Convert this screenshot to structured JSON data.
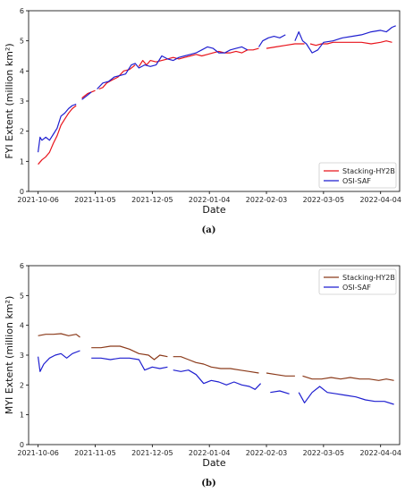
{
  "chart_data": [
    {
      "type": "line",
      "panel_label": "(a)",
      "xlabel": "Date",
      "ylabel": "FYI Extent (million km²)",
      "x_ticks": [
        "2021-10-06",
        "2021-11-05",
        "2021-12-05",
        "2022-01-04",
        "2022-02-03",
        "2022-03-05",
        "2022-04-04"
      ],
      "xlim": [
        "2021-10-01",
        "2022-04-14"
      ],
      "ylim": [
        0,
        6
      ],
      "y_ticks": [
        0,
        1,
        2,
        3,
        4,
        5,
        6
      ],
      "legend_position": "lower-right",
      "series": [
        {
          "name": "Stacking-HY2B",
          "color": "#e8141c",
          "points": [
            [
              "2021-10-06",
              0.9
            ],
            [
              "2021-10-08",
              1.05
            ],
            [
              "2021-10-10",
              1.15
            ],
            [
              "2021-10-12",
              1.3
            ],
            [
              "2021-10-14",
              1.6
            ],
            [
              "2021-10-16",
              1.85
            ],
            [
              "2021-10-18",
              2.2
            ],
            [
              "2021-10-20",
              2.4
            ],
            [
              "2021-10-22",
              2.6
            ],
            [
              "2021-10-24",
              2.75
            ],
            [
              "2021-10-26",
              2.85
            ],
            null,
            [
              "2021-10-29",
              3.1
            ],
            [
              "2021-11-01",
              3.25
            ],
            [
              "2021-11-03",
              3.3
            ],
            [
              "2021-11-05",
              3.35
            ],
            null,
            [
              "2021-11-07",
              3.4
            ],
            [
              "2021-11-09",
              3.45
            ],
            [
              "2021-11-11",
              3.6
            ],
            [
              "2021-11-14",
              3.7
            ],
            [
              "2021-11-17",
              3.8
            ],
            [
              "2021-11-20",
              4.0
            ],
            [
              "2021-11-23",
              4.05
            ],
            [
              "2021-11-26",
              4.2
            ],
            null,
            [
              "2021-11-28",
              4.15
            ],
            [
              "2021-11-30",
              4.35
            ],
            [
              "2021-12-02",
              4.2
            ],
            [
              "2021-12-04",
              4.35
            ],
            [
              "2021-12-07",
              4.3
            ],
            [
              "2021-12-10",
              4.35
            ],
            [
              "2021-12-13",
              4.4
            ],
            [
              "2021-12-16",
              4.45
            ],
            [
              "2021-12-19",
              4.4
            ],
            [
              "2021-12-22",
              4.45
            ],
            [
              "2021-12-25",
              4.5
            ],
            [
              "2021-12-28",
              4.55
            ],
            [
              "2021-12-31",
              4.5
            ],
            [
              "2022-01-03",
              4.55
            ],
            [
              "2022-01-06",
              4.6
            ],
            [
              "2022-01-09",
              4.65
            ],
            [
              "2022-01-12",
              4.6
            ],
            [
              "2022-01-15",
              4.6
            ],
            [
              "2022-01-18",
              4.65
            ],
            [
              "2022-01-21",
              4.6
            ],
            [
              "2022-01-24",
              4.7
            ],
            [
              "2022-01-27",
              4.7
            ],
            [
              "2022-01-30",
              4.75
            ],
            null,
            [
              "2022-02-03",
              4.75
            ],
            [
              "2022-02-08",
              4.8
            ],
            [
              "2022-02-13",
              4.85
            ],
            [
              "2022-02-18",
              4.9
            ],
            [
              "2022-02-23",
              4.9
            ],
            null,
            [
              "2022-02-26",
              4.9
            ],
            [
              "2022-03-01",
              4.85
            ],
            [
              "2022-03-04",
              4.9
            ],
            [
              "2022-03-07",
              4.9
            ],
            [
              "2022-03-10",
              4.95
            ],
            [
              "2022-03-15",
              4.95
            ],
            [
              "2022-03-20",
              4.95
            ],
            [
              "2022-03-25",
              4.95
            ],
            [
              "2022-03-30",
              4.9
            ],
            [
              "2022-04-04",
              4.95
            ],
            [
              "2022-04-07",
              5.0
            ],
            [
              "2022-04-10",
              4.95
            ]
          ]
        },
        {
          "name": "OSI-SAF",
          "color": "#1f1fd0",
          "points": [
            [
              "2021-10-06",
              1.3
            ],
            [
              "2021-10-07",
              1.8
            ],
            [
              "2021-10-08",
              1.7
            ],
            [
              "2021-10-10",
              1.8
            ],
            [
              "2021-10-12",
              1.7
            ],
            [
              "2021-10-14",
              1.9
            ],
            [
              "2021-10-16",
              2.1
            ],
            [
              "2021-10-18",
              2.5
            ],
            [
              "2021-10-20",
              2.6
            ],
            [
              "2021-10-22",
              2.75
            ],
            [
              "2021-10-24",
              2.85
            ],
            [
              "2021-10-26",
              2.9
            ],
            null,
            [
              "2021-10-29",
              3.05
            ],
            [
              "2021-11-01",
              3.2
            ],
            [
              "2021-11-03",
              3.3
            ],
            null,
            [
              "2021-11-06",
              3.4
            ],
            [
              "2021-11-09",
              3.6
            ],
            [
              "2021-11-12",
              3.65
            ],
            [
              "2021-11-15",
              3.8
            ],
            [
              "2021-11-18",
              3.85
            ],
            [
              "2021-11-21",
              3.9
            ],
            [
              "2021-11-24",
              4.2
            ],
            [
              "2021-11-26",
              4.25
            ],
            [
              "2021-11-28",
              4.1
            ],
            [
              "2021-12-01",
              4.2
            ],
            [
              "2021-12-04",
              4.15
            ],
            [
              "2021-12-07",
              4.2
            ],
            [
              "2021-12-10",
              4.5
            ],
            [
              "2021-12-13",
              4.4
            ],
            [
              "2021-12-16",
              4.35
            ],
            [
              "2021-12-19",
              4.45
            ],
            [
              "2021-12-22",
              4.5
            ],
            [
              "2021-12-25",
              4.55
            ],
            [
              "2021-12-28",
              4.6
            ],
            [
              "2021-12-31",
              4.7
            ],
            [
              "2022-01-03",
              4.8
            ],
            [
              "2022-01-06",
              4.75
            ],
            [
              "2022-01-09",
              4.6
            ],
            [
              "2022-01-12",
              4.6
            ],
            [
              "2022-01-15",
              4.7
            ],
            [
              "2022-01-18",
              4.75
            ],
            [
              "2022-01-21",
              4.8
            ],
            [
              "2022-01-24",
              4.7
            ],
            null,
            [
              "2022-01-30",
              4.8
            ],
            [
              "2022-02-01",
              5.0
            ],
            [
              "2022-02-04",
              5.1
            ],
            [
              "2022-02-07",
              5.15
            ],
            [
              "2022-02-10",
              5.1
            ],
            [
              "2022-02-13",
              5.2
            ],
            null,
            [
              "2022-02-18",
              5.0
            ],
            [
              "2022-02-20",
              5.3
            ],
            [
              "2022-02-22",
              5.0
            ],
            [
              "2022-02-24",
              4.9
            ],
            [
              "2022-02-27",
              4.6
            ],
            [
              "2022-03-02",
              4.7
            ],
            [
              "2022-03-05",
              4.95
            ],
            [
              "2022-03-10",
              5.0
            ],
            [
              "2022-03-15",
              5.1
            ],
            [
              "2022-03-20",
              5.15
            ],
            [
              "2022-03-25",
              5.2
            ],
            [
              "2022-03-30",
              5.3
            ],
            [
              "2022-04-04",
              5.35
            ],
            [
              "2022-04-07",
              5.3
            ],
            [
              "2022-04-10",
              5.45
            ],
            [
              "2022-04-12",
              5.5
            ]
          ]
        }
      ]
    },
    {
      "type": "line",
      "panel_label": "(b)",
      "xlabel": "Date",
      "ylabel": "MYI Extent (million km²)",
      "x_ticks": [
        "2021-10-06",
        "2021-11-05",
        "2021-12-05",
        "2022-01-04",
        "2022-02-03",
        "2022-03-05",
        "2022-04-04"
      ],
      "xlim": [
        "2021-10-01",
        "2022-04-14"
      ],
      "ylim": [
        0,
        6
      ],
      "y_ticks": [
        0,
        1,
        2,
        3,
        4,
        5,
        6
      ],
      "legend_position": "upper-right",
      "series": [
        {
          "name": "Stacking-HY2B",
          "color": "#8b3a1a",
          "points": [
            [
              "2021-10-06",
              3.65
            ],
            [
              "2021-10-10",
              3.7
            ],
            [
              "2021-10-14",
              3.7
            ],
            [
              "2021-10-18",
              3.72
            ],
            [
              "2021-10-22",
              3.65
            ],
            [
              "2021-10-26",
              3.7
            ],
            [
              "2021-10-28",
              3.6
            ],
            null,
            [
              "2021-11-03",
              3.25
            ],
            [
              "2021-11-08",
              3.25
            ],
            [
              "2021-11-13",
              3.3
            ],
            [
              "2021-11-18",
              3.3
            ],
            [
              "2021-11-23",
              3.2
            ],
            [
              "2021-11-28",
              3.05
            ],
            [
              "2021-12-03",
              3.0
            ],
            [
              "2021-12-06",
              2.85
            ],
            [
              "2021-12-09",
              3.0
            ],
            [
              "2021-12-13",
              2.95
            ],
            null,
            [
              "2021-12-16",
              2.95
            ],
            [
              "2021-12-20",
              2.95
            ],
            [
              "2021-12-24",
              2.85
            ],
            [
              "2021-12-28",
              2.75
            ],
            [
              "2022-01-01",
              2.7
            ],
            [
              "2022-01-05",
              2.6
            ],
            [
              "2022-01-10",
              2.55
            ],
            [
              "2022-01-15",
              2.55
            ],
            [
              "2022-01-20",
              2.5
            ],
            [
              "2022-01-25",
              2.45
            ],
            [
              "2022-01-30",
              2.4
            ],
            null,
            [
              "2022-02-03",
              2.4
            ],
            [
              "2022-02-08",
              2.35
            ],
            [
              "2022-02-13",
              2.3
            ],
            [
              "2022-02-18",
              2.3
            ],
            null,
            [
              "2022-02-22",
              2.3
            ],
            [
              "2022-02-27",
              2.2
            ],
            [
              "2022-03-04",
              2.2
            ],
            [
              "2022-03-09",
              2.25
            ],
            [
              "2022-03-14",
              2.2
            ],
            [
              "2022-03-19",
              2.25
            ],
            [
              "2022-03-24",
              2.2
            ],
            [
              "2022-03-29",
              2.2
            ],
            [
              "2022-04-03",
              2.15
            ],
            [
              "2022-04-07",
              2.2
            ],
            [
              "2022-04-11",
              2.15
            ]
          ]
        },
        {
          "name": "OSI-SAF",
          "color": "#1f1fd0",
          "points": [
            [
              "2021-10-06",
              2.95
            ],
            [
              "2021-10-07",
              2.45
            ],
            [
              "2021-10-09",
              2.7
            ],
            [
              "2021-10-12",
              2.9
            ],
            [
              "2021-10-15",
              3.0
            ],
            [
              "2021-10-18",
              3.05
            ],
            [
              "2021-10-21",
              2.9
            ],
            [
              "2021-10-24",
              3.05
            ],
            [
              "2021-10-28",
              3.15
            ],
            null,
            [
              "2021-11-03",
              2.9
            ],
            [
              "2021-11-08",
              2.9
            ],
            [
              "2021-11-13",
              2.85
            ],
            [
              "2021-11-18",
              2.9
            ],
            [
              "2021-11-23",
              2.9
            ],
            [
              "2021-11-28",
              2.85
            ],
            [
              "2021-12-01",
              2.5
            ],
            [
              "2021-12-05",
              2.6
            ],
            [
              "2021-12-09",
              2.55
            ],
            [
              "2021-12-13",
              2.6
            ],
            null,
            [
              "2021-12-16",
              2.5
            ],
            [
              "2021-12-20",
              2.45
            ],
            [
              "2021-12-24",
              2.5
            ],
            [
              "2021-12-28",
              2.35
            ],
            [
              "2022-01-01",
              2.05
            ],
            [
              "2022-01-05",
              2.15
            ],
            [
              "2022-01-09",
              2.1
            ],
            [
              "2022-01-13",
              2.0
            ],
            [
              "2022-01-17",
              2.1
            ],
            [
              "2022-01-21",
              2.0
            ],
            [
              "2022-01-25",
              1.95
            ],
            [
              "2022-01-28",
              1.85
            ],
            [
              "2022-01-31",
              2.05
            ],
            null,
            [
              "2022-02-05",
              1.75
            ],
            [
              "2022-02-10",
              1.8
            ],
            [
              "2022-02-15",
              1.7
            ],
            null,
            [
              "2022-02-20",
              1.75
            ],
            [
              "2022-02-23",
              1.4
            ],
            [
              "2022-02-27",
              1.75
            ],
            [
              "2022-03-03",
              1.95
            ],
            [
              "2022-03-07",
              1.75
            ],
            [
              "2022-03-12",
              1.7
            ],
            [
              "2022-03-17",
              1.65
            ],
            [
              "2022-03-22",
              1.6
            ],
            [
              "2022-03-27",
              1.5
            ],
            [
              "2022-04-01",
              1.45
            ],
            [
              "2022-04-06",
              1.45
            ],
            [
              "2022-04-11",
              1.35
            ]
          ]
        }
      ]
    }
  ]
}
